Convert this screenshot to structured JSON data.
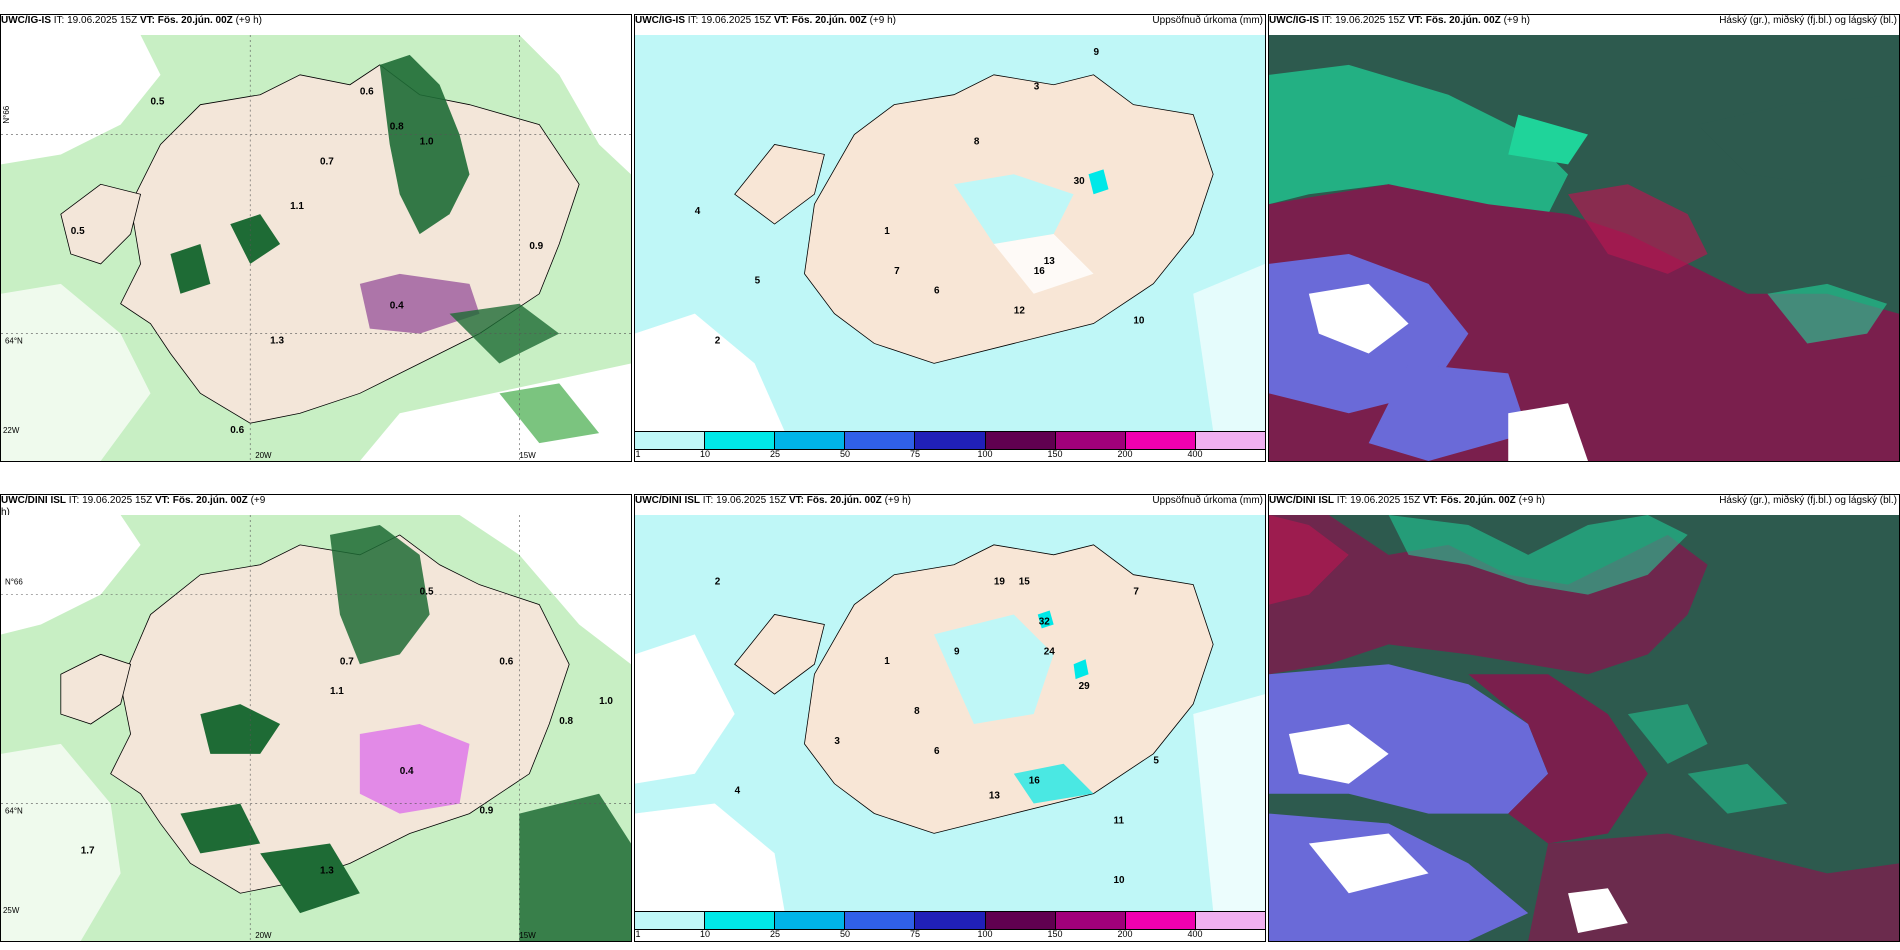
{
  "panels": [
    {
      "id": "top-left",
      "model": "UWC/IG-IS",
      "it_label": "IT:",
      "it_value": "19.06.2025 15Z",
      "vt_label": "VT:",
      "vt_value": "Fös. 20.jún. 00Z",
      "lead": "(+9 h)",
      "right_title": "",
      "lat_labels": [
        "N°66",
        "64°N"
      ],
      "lon_labels": [
        "20W",
        "15W",
        "22W"
      ],
      "values": [
        "0.5",
        "0.6",
        "0.8",
        "1.0",
        "0.7",
        "1.1",
        "1.3",
        "0.9",
        "0.4",
        "0.5",
        "0.6"
      ]
    },
    {
      "id": "top-middle",
      "model": "UWC/IG-IS",
      "it_label": "IT:",
      "it_value": "19.06.2025 15Z",
      "vt_label": "VT:",
      "vt_value": "Fös. 20.jún. 00Z",
      "lead": "(+9 h)",
      "right_title": "Uppsöfnuð úrkoma (mm)",
      "values": [
        "1",
        "2",
        "3",
        "4",
        "5",
        "6",
        "7",
        "8",
        "9",
        "10",
        "12",
        "13",
        "16",
        "30"
      ]
    },
    {
      "id": "top-right",
      "model": "UWC/IG-IS",
      "it_label": "IT:",
      "it_value": "19.06.2025 15Z",
      "vt_label": "VT:",
      "vt_value": "Fös. 20.jún. 00Z",
      "lead": "(+9 h)",
      "right_title": "Háský (gr.), miðský (fj.bl.) og lágský (bl.)"
    },
    {
      "id": "bottom-left",
      "model": "UWC/DINI ISL",
      "it_label": "IT:",
      "it_value": "19.06.2025 15Z",
      "vt_label": "VT:",
      "vt_value": "Fös. 20.jún. 00Z",
      "lead": "(+9",
      "lead2": "h)",
      "right_title": "",
      "lat_labels": [
        "N°66",
        "64°N"
      ],
      "lon_labels": [
        "20W",
        "15W",
        "25W"
      ],
      "values": [
        "0.5",
        "0.6",
        "0.8",
        "1.0",
        "0.7",
        "1.1",
        "1.3",
        "0.9",
        "0.4",
        "1.7"
      ]
    },
    {
      "id": "bottom-middle",
      "model": "UWC/DINI ISL",
      "it_label": "IT:",
      "it_value": "19.06.2025 15Z",
      "vt_label": "VT:",
      "vt_value": "Fös. 20.jún. 00Z",
      "lead": "(+9 h)",
      "right_title": "Uppsöfnuð úrkoma (mm)",
      "values": [
        "1",
        "2",
        "3",
        "4",
        "5",
        "6",
        "7",
        "8",
        "9",
        "10",
        "11",
        "13",
        "15",
        "16",
        "19",
        "24",
        "29",
        "32"
      ]
    },
    {
      "id": "bottom-right",
      "model": "UWC/DINI ISL",
      "it_label": "IT:",
      "it_value": "19.06.2025 15Z",
      "vt_label": "VT:",
      "vt_value": "Fös. 20.jún. 00Z",
      "lead": "(+9 h)",
      "right_title": "Háský (gr.), miðský (fj.bl.) og lágský (bl.)"
    }
  ],
  "colorbar": {
    "colors": [
      "#bff7f7",
      "#00e8e8",
      "#00b4e8",
      "#3060e8",
      "#2020b8",
      "#600050",
      "#a0007a",
      "#f000b0",
      "#f0b0f0"
    ],
    "labels": [
      "1",
      "10",
      "25",
      "50",
      "75",
      "100",
      "150",
      "200",
      "400"
    ]
  },
  "colors": {
    "land": "#f3e6d9",
    "light_precip": "#c8efc4",
    "mid_precip": "#7bc47f",
    "heavy_precip": "#1e6b35",
    "sea_cloud_dark": "#2d5a4e",
    "high_cloud": "#1fd49a",
    "mid_cloud": "#7a1f4d",
    "low_cloud": "#6a6ad8"
  }
}
